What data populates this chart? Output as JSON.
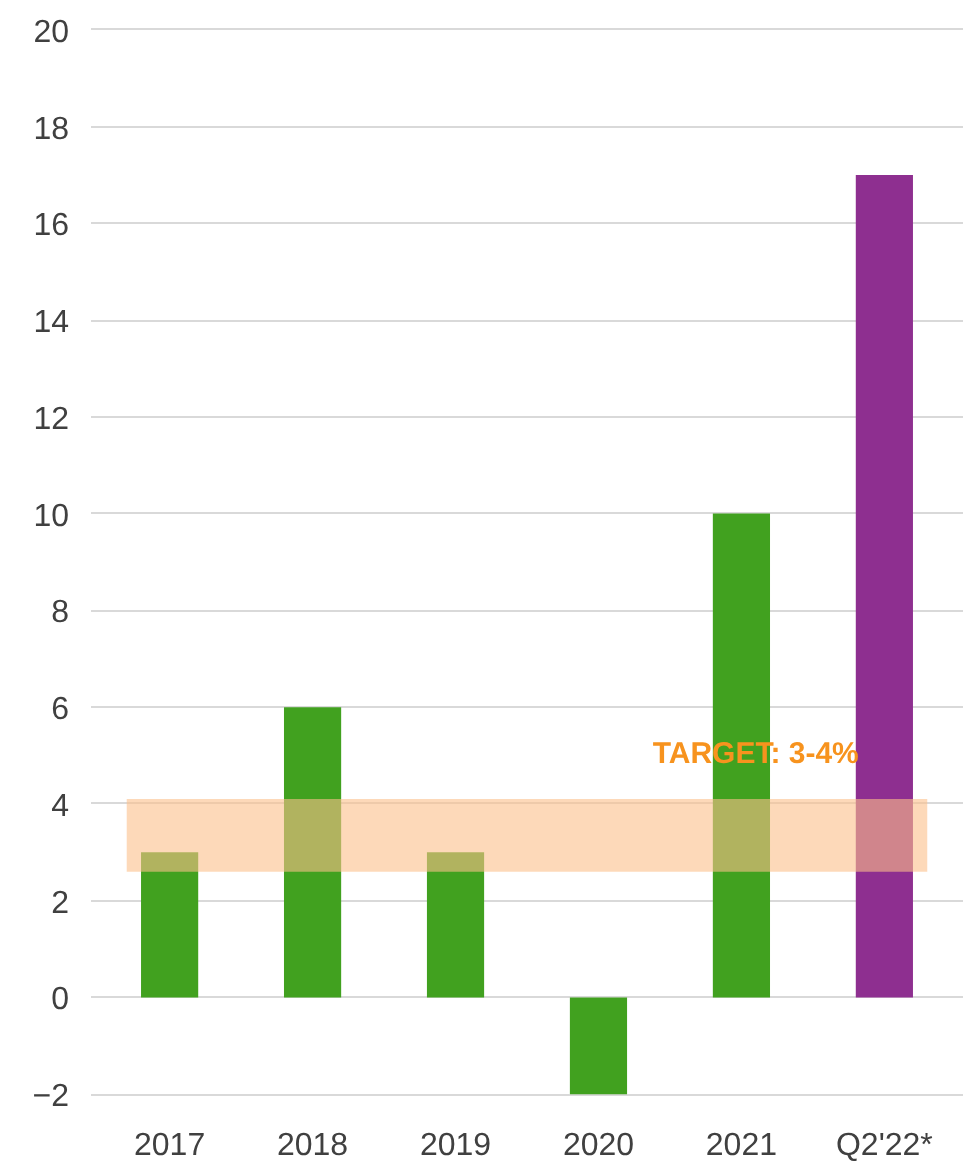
{
  "chart_data": {
    "type": "bar",
    "categories": [
      "2017",
      "2018",
      "2019",
      "2020",
      "2021",
      "Q2'22*"
    ],
    "values": [
      3,
      6,
      3,
      -2,
      10,
      17
    ],
    "colors": [
      "#41a11f",
      "#41a11f",
      "#41a11f",
      "#41a11f",
      "#41a11f",
      "#8e2f90"
    ],
    "ylim": [
      -2,
      20
    ],
    "yticks": [
      -2,
      0,
      2,
      4,
      6,
      8,
      10,
      12,
      14,
      16,
      18,
      20
    ],
    "grid": "y",
    "bands": [
      {
        "axis": "y",
        "from": 2.6,
        "to": 4.1,
        "label": "TARGET: 3-4%",
        "color": "#fbc08a"
      }
    ]
  }
}
